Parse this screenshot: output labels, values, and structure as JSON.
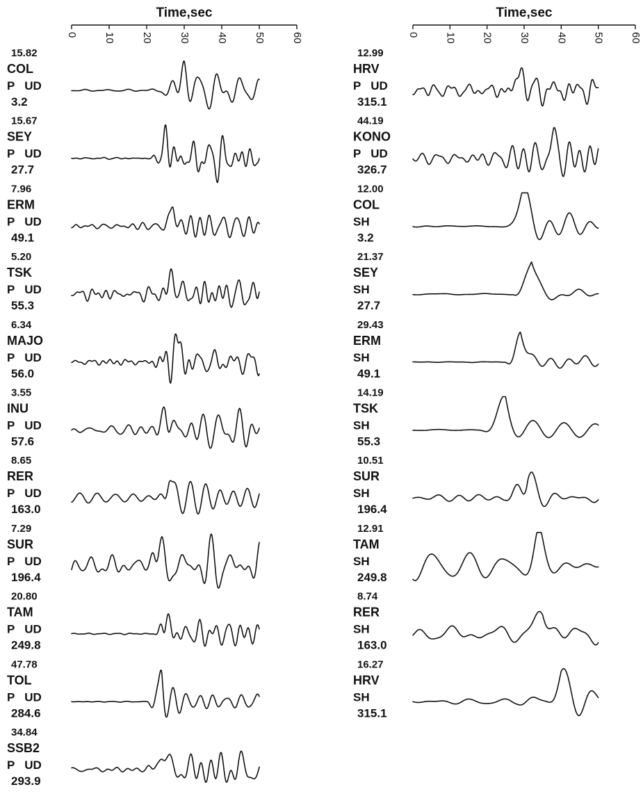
{
  "chart_data": [
    {
      "type": "line",
      "xlabel": "Time,sec",
      "xlim": [
        0,
        60
      ],
      "xticks": [
        "0",
        "10",
        "20",
        "30",
        "40",
        "50",
        "60"
      ],
      "traces": [
        {
          "amplitude": "15.82",
          "station": "COL",
          "component": "P   UD",
          "azimuth": "3.2",
          "seed": 3,
          "onset": 20,
          "peak": 30,
          "end": 50,
          "pre": 0.04,
          "post": 0.8,
          "period": 3.2
        },
        {
          "amplitude": "15.67",
          "station": "SEY",
          "component": "P   UD",
          "azimuth": "27.7",
          "seed": 7,
          "onset": 21,
          "peak": 25,
          "end": 50,
          "pre": 0.04,
          "post": 0.85,
          "period": 2.6
        },
        {
          "amplitude": "7.96",
          "station": "ERM",
          "component": "P   UD",
          "azimuth": "49.1",
          "seed": 11,
          "onset": 24,
          "peak": 27,
          "end": 50,
          "pre": 0.15,
          "post": 0.75,
          "period": 2.4
        },
        {
          "amplitude": "5.20",
          "station": "TSK",
          "component": "P   UD",
          "azimuth": "55.3",
          "seed": 13,
          "onset": 23,
          "peak": 27,
          "end": 50,
          "pre": 0.3,
          "post": 0.75,
          "period": 2.8
        },
        {
          "amplitude": "6.34",
          "station": "MAJO",
          "component": "P   UD",
          "azimuth": "56.0",
          "seed": 17,
          "onset": 20,
          "peak": 28,
          "end": 50,
          "pre": 0.12,
          "post": 0.7,
          "period": 2.5
        },
        {
          "amplitude": "3.55",
          "station": "INU",
          "component": "P   UD",
          "azimuth": "57.6",
          "seed": 19,
          "onset": 21,
          "peak": 25,
          "end": 50,
          "pre": 0.2,
          "post": 0.75,
          "period": 2.9
        },
        {
          "amplitude": "8.65",
          "station": "RER",
          "component": "P   UD",
          "azimuth": "163.0",
          "seed": 23,
          "onset": 20,
          "peak": 26,
          "end": 50,
          "pre": 0.35,
          "post": 0.6,
          "period": 2.6
        },
        {
          "amplitude": "7.29",
          "station": "SUR",
          "component": "P   UD",
          "azimuth": "196.4",
          "seed": 29,
          "onset": 20,
          "peak": 22,
          "end": 50,
          "pre": 0.45,
          "post": 0.85,
          "period": 3.4
        },
        {
          "amplitude": "20.80",
          "station": "TAM",
          "component": "P   UD",
          "azimuth": "249.8",
          "seed": 31,
          "onset": 22,
          "peak": 25,
          "end": 50,
          "pre": 0.03,
          "post": 0.45,
          "period": 2.6
        },
        {
          "amplitude": "47.78",
          "station": "TOL",
          "component": "P   UD",
          "azimuth": "284.6",
          "seed": 37,
          "onset": 20,
          "peak": 24,
          "end": 50,
          "pre": 0.02,
          "post": 0.3,
          "period": 2.2
        },
        {
          "amplitude": "34.84",
          "station": "SSB2",
          "component": "P   UD",
          "azimuth": "293.9",
          "seed": 41,
          "onset": 19,
          "peak": 24,
          "end": 50,
          "pre": 0.12,
          "post": 0.9,
          "period": 3.2
        }
      ]
    },
    {
      "type": "line",
      "xlabel": "Time,sec",
      "xlim": [
        0,
        60
      ],
      "xticks": [
        "0",
        "10",
        "20",
        "30",
        "40",
        "50",
        "60"
      ],
      "traces": [
        {
          "amplitude": "12.99",
          "station": "HRV",
          "component": "P   UD",
          "azimuth": "315.1",
          "seed": 43,
          "onset": 20,
          "peak": 29,
          "end": 50,
          "pre": 0.3,
          "post": 0.7,
          "period": 3.0
        },
        {
          "amplitude": "44.19",
          "station": "KONO",
          "component": "P   UD",
          "azimuth": "326.7",
          "seed": 47,
          "onset": 20,
          "peak": 38,
          "end": 50,
          "pre": 0.35,
          "post": 0.85,
          "period": 2.6
        },
        {
          "amplitude": "12.00",
          "station": "COL",
          "component": "SH",
          "azimuth": "3.2",
          "seed": 53,
          "onset": 22,
          "peak": 30,
          "end": 50,
          "pre": 0.04,
          "post": 0.6,
          "period": 8.0
        },
        {
          "amplitude": "21.37",
          "station": "SEY",
          "component": "SH",
          "azimuth": "27.7",
          "seed": 59,
          "onset": 27,
          "peak": 32,
          "end": 50,
          "pre": 0.03,
          "post": 0.35,
          "period": 8.0
        },
        {
          "amplitude": "29.43",
          "station": "ERM",
          "component": "SH",
          "azimuth": "49.1",
          "seed": 61,
          "onset": 25,
          "peak": 29,
          "end": 50,
          "pre": 0.02,
          "post": 0.55,
          "period": 7.0
        },
        {
          "amplitude": "14.19",
          "station": "TSK",
          "component": "SH",
          "azimuth": "55.3",
          "seed": 67,
          "onset": 18,
          "peak": 25,
          "end": 50,
          "pre": 0.03,
          "post": 0.55,
          "period": 9.0
        },
        {
          "amplitude": "10.51",
          "station": "SUR",
          "component": "SH",
          "azimuth": "196.4",
          "seed": 71,
          "onset": 25,
          "peak": 31,
          "end": 50,
          "pre": 0.12,
          "post": 0.3,
          "period": 8.0
        },
        {
          "amplitude": "12.91",
          "station": "TAM",
          "component": "SH",
          "azimuth": "249.8",
          "seed": 73,
          "onset": 28,
          "peak": 34,
          "end": 50,
          "pre": 0.45,
          "post": 0.6,
          "period": 5.5
        },
        {
          "amplitude": "8.74",
          "station": "RER",
          "component": "SH",
          "azimuth": "163.0",
          "seed": 79,
          "onset": 30,
          "peak": 35,
          "end": 50,
          "pre": 0.35,
          "post": 0.6,
          "period": 7.0
        },
        {
          "amplitude": "16.27",
          "station": "HRV",
          "component": "SH",
          "azimuth": "315.1",
          "seed": 83,
          "onset": 28,
          "peak": 40,
          "end": 50,
          "pre": 0.1,
          "post": 0.7,
          "period": 7.5
        }
      ]
    }
  ]
}
